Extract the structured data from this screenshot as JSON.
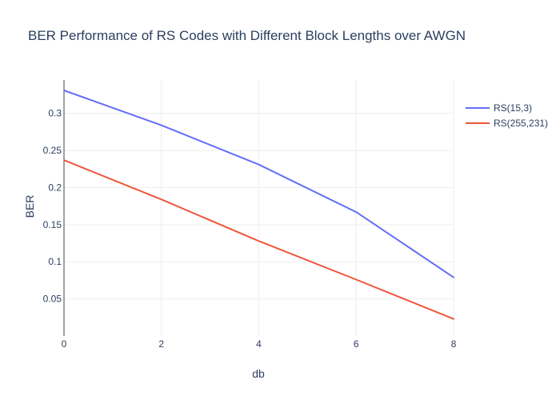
{
  "chart_data": {
    "type": "line",
    "title": "BER Performance of RS Codes with Different Block Lengths over AWGN",
    "xlabel": "db",
    "ylabel": "BER",
    "x": [
      0,
      2,
      4,
      6,
      8
    ],
    "xlim": [
      0,
      8
    ],
    "ylim": [
      0.0,
      0.345
    ],
    "xticks": [
      "0",
      "2",
      "4",
      "6",
      "8"
    ],
    "yticks": [
      "0.05",
      "0.1",
      "0.15",
      "0.2",
      "0.25",
      "0.3"
    ],
    "grid": true,
    "legend_position": "top-right",
    "series": [
      {
        "name": "RS(15,3)",
        "color": "#636efa",
        "values": [
          0.331,
          0.284,
          0.231,
          0.167,
          0.079
        ]
      },
      {
        "name": "RS(255,231)",
        "color": "#ef553b",
        "values": [
          0.237,
          0.184,
          0.128,
          0.076,
          0.023
        ]
      }
    ]
  }
}
